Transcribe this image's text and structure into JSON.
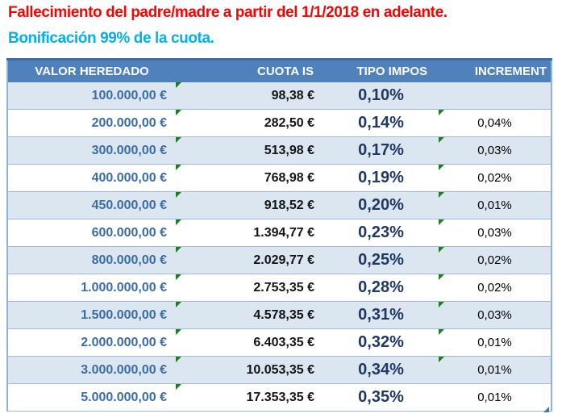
{
  "page": {
    "title": "Fallecimiento del padre/madre a partir del 1/1/2018 en adelante.",
    "subtitle": "Bonificación 99% de la cuota."
  },
  "colors": {
    "title_red": "#FF0000",
    "subtitle_cyan": "#00B0F0",
    "header_bg": "#4F81BD",
    "banded_row_bg": "#DCE6F1",
    "valor_text_blue": "#3A6DA6",
    "tipo_text_navy": "#1F3864",
    "error_triangle_green": "#1E7E1E",
    "resize_handle_blue": "#4472C4",
    "row_border": "#A0BADB"
  },
  "icons": {
    "error_indicator": "green corner triangle (cell error flag)",
    "resize_handle": "blue corner triangle (table size grip)"
  },
  "table": {
    "columns": [
      "VALOR HEREDADO",
      "CUOTA IS",
      "TIPO IMPOS",
      "INCREMENT"
    ],
    "rows": [
      {
        "valor": "100.000,00 €",
        "cuota": "98,38 €",
        "tipo": "0,10%",
        "incremento": "",
        "cuota_flag": true,
        "incremento_flag": false
      },
      {
        "valor": "200.000,00 €",
        "cuota": "282,50 €",
        "tipo": "0,14%",
        "incremento": "0,04%",
        "cuota_flag": true,
        "incremento_flag": true
      },
      {
        "valor": "300.000,00 €",
        "cuota": "513,98 €",
        "tipo": "0,17%",
        "incremento": "0,03%",
        "cuota_flag": true,
        "incremento_flag": true
      },
      {
        "valor": "400.000,00 €",
        "cuota": "768,98 €",
        "tipo": "0,19%",
        "incremento": "0,02%",
        "cuota_flag": true,
        "incremento_flag": true
      },
      {
        "valor": "450.000,00 €",
        "cuota": "918,52 €",
        "tipo": "0,20%",
        "incremento": "0,01%",
        "cuota_flag": true,
        "incremento_flag": true
      },
      {
        "valor": "600.000,00 €",
        "cuota": "1.394,77 €",
        "tipo": "0,23%",
        "incremento": "0,03%",
        "cuota_flag": true,
        "incremento_flag": true
      },
      {
        "valor": "800.000,00 €",
        "cuota": "2.029,77 €",
        "tipo": "0,25%",
        "incremento": "0,02%",
        "cuota_flag": true,
        "incremento_flag": true
      },
      {
        "valor": "1.000.000,00 €",
        "cuota": "2.753,35 €",
        "tipo": "0,28%",
        "incremento": "0,02%",
        "cuota_flag": true,
        "incremento_flag": true
      },
      {
        "valor": "1.500.000,00 €",
        "cuota": "4.578,35 €",
        "tipo": "0,31%",
        "incremento": "0,03%",
        "cuota_flag": true,
        "incremento_flag": true
      },
      {
        "valor": "2.000.000,00 €",
        "cuota": "6.403,35 €",
        "tipo": "0,32%",
        "incremento": "0,01%",
        "cuota_flag": true,
        "incremento_flag": true
      },
      {
        "valor": "3.000.000,00 €",
        "cuota": "10.053,35 €",
        "tipo": "0,34%",
        "incremento": "0,01%",
        "cuota_flag": true,
        "incremento_flag": true
      },
      {
        "valor": "5.000.000,00 €",
        "cuota": "17.353,35 €",
        "tipo": "0,35%",
        "incremento": "0,01%",
        "cuota_flag": true,
        "incremento_flag": false
      }
    ]
  }
}
